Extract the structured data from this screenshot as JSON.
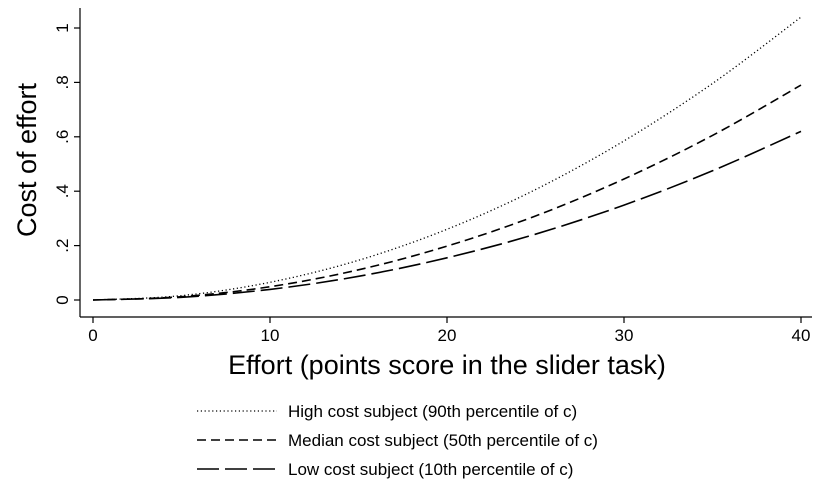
{
  "chart_data": {
    "type": "line",
    "title": "",
    "xlabel": "Effort (points score in the slider task)",
    "ylabel": "Cost of effort",
    "xlim": [
      0,
      40
    ],
    "ylim": [
      0,
      1.05
    ],
    "xticks": [
      0,
      10,
      20,
      30,
      40
    ],
    "xtick_labels": [
      "0",
      "10",
      "20",
      "30",
      "40"
    ],
    "yticks": [
      0,
      0.2,
      0.4,
      0.6,
      0.8,
      1
    ],
    "ytick_labels": [
      "0",
      ".2",
      ".4",
      ".6",
      ".8",
      "1"
    ],
    "grid": false,
    "legend_position": "bottom",
    "x": [
      0,
      5,
      10,
      15,
      20,
      25,
      30,
      35,
      40
    ],
    "series": [
      {
        "name": "High cost subject (90th percentile of c)",
        "style": "dotted",
        "values": [
          0,
          0.016,
          0.065,
          0.146,
          0.26,
          0.406,
          0.585,
          0.796,
          1.04
        ]
      },
      {
        "name": "Median cost subject (50th percentile of c)",
        "style": "dashed",
        "values": [
          0,
          0.012,
          0.049,
          0.111,
          0.198,
          0.309,
          0.445,
          0.605,
          0.79
        ]
      },
      {
        "name": "Low cost subject (10th percentile of c)",
        "style": "longdash",
        "values": [
          0,
          0.01,
          0.039,
          0.087,
          0.155,
          0.242,
          0.349,
          0.475,
          0.62
        ]
      }
    ]
  }
}
